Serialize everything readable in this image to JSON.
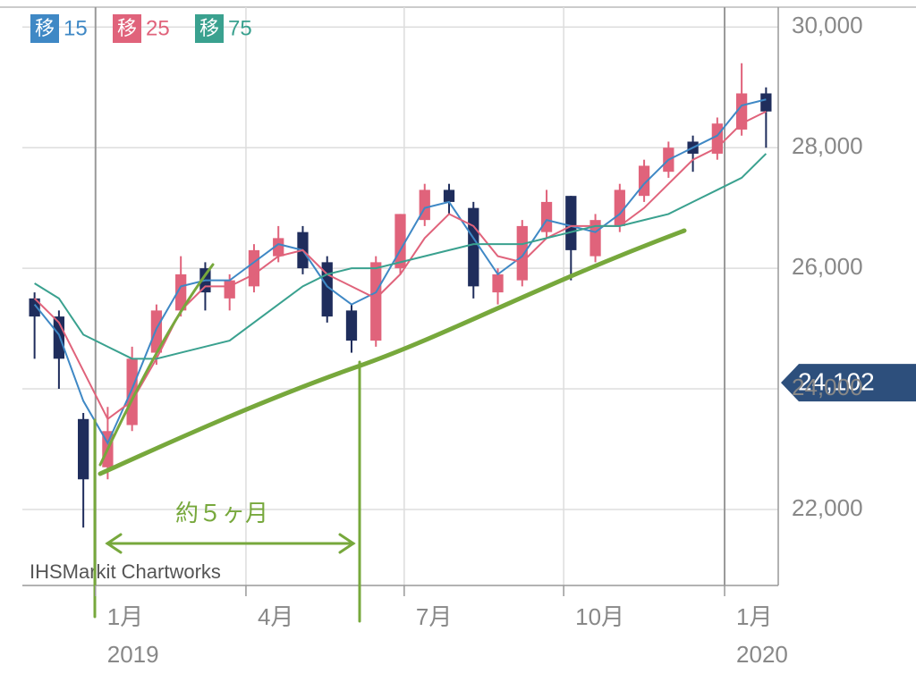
{
  "chart_data": {
    "type": "candlestick",
    "legend_prefix": "移",
    "source": "IHSMarkit Chartworks",
    "annotation": "約５ヶ月",
    "up_color": "#e0637b",
    "down_color": "#1f2d5c",
    "open": [
      25500,
      25200,
      23500,
      22700,
      23400,
      24600,
      25300,
      26000,
      25500,
      25700,
      26200,
      26600,
      26100,
      25300,
      24800,
      26000,
      26800,
      27300,
      27000,
      25600,
      25800,
      26600,
      27200,
      26200,
      26700,
      27200,
      27600,
      28100,
      27900,
      28300,
      28900
    ],
    "high": [
      25600,
      25300,
      23600,
      23700,
      24700,
      25400,
      26200,
      26100,
      25900,
      26400,
      26700,
      26700,
      26200,
      25400,
      26200,
      26900,
      27400,
      27400,
      27100,
      26000,
      26800,
      27300,
      27200,
      26900,
      27400,
      27800,
      28100,
      28200,
      28500,
      29400,
      29000
    ],
    "low": [
      24500,
      24000,
      21700,
      22500,
      23300,
      24400,
      25200,
      25300,
      25300,
      25600,
      26100,
      25900,
      25100,
      24600,
      24700,
      25900,
      26700,
      26900,
      25500,
      25400,
      25700,
      26500,
      25800,
      26100,
      26600,
      27100,
      27500,
      27600,
      27800,
      28200,
      28000
    ],
    "close": [
      25200,
      24500,
      22500,
      23300,
      24500,
      25300,
      25900,
      25600,
      25800,
      26300,
      26500,
      26000,
      25200,
      24800,
      26100,
      26900,
      27300,
      27100,
      25700,
      25900,
      26700,
      27100,
      26300,
      26800,
      27300,
      27700,
      28000,
      27900,
      28400,
      28900,
      28600
    ],
    "series": [
      {
        "name": "15",
        "color": "#3f88c5",
        "values": [
          25400,
          24900,
          23800,
          23100,
          24000,
          25000,
          25700,
          25800,
          25800,
          26100,
          26400,
          26300,
          25700,
          25400,
          25600,
          26300,
          27000,
          27100,
          26500,
          25900,
          26200,
          26800,
          26700,
          26600,
          26900,
          27400,
          27800,
          28000,
          28200,
          28700,
          28800
        ]
      },
      {
        "name": "25",
        "color": "#e0637b",
        "values": [
          25500,
          25100,
          24300,
          23500,
          23800,
          24500,
          25300,
          25700,
          25700,
          25900,
          26200,
          26300,
          25900,
          25700,
          25500,
          25900,
          26500,
          26900,
          26700,
          26200,
          26100,
          26500,
          26700,
          26700,
          26700,
          27000,
          27400,
          27800,
          28000,
          28400,
          28600
        ]
      },
      {
        "name": "75",
        "color": "#3aa18f",
        "values": [
          25750,
          25500,
          24900,
          24700,
          24500,
          24500,
          24600,
          24700,
          24800,
          25100,
          25400,
          25700,
          25900,
          26000,
          26000,
          26100,
          26200,
          26300,
          26400,
          26400,
          26400,
          26500,
          26600,
          26700,
          26700,
          26800,
          26900,
          27100,
          27300,
          27500,
          27900
        ]
      }
    ],
    "xlim": [
      0,
      31
    ],
    "xticks": [
      {
        "value": 3.0,
        "label": "1月"
      },
      {
        "value": 9.17,
        "label": "4月"
      },
      {
        "value": 15.66,
        "label": "7月"
      },
      {
        "value": 22.2,
        "label": "10月"
      },
      {
        "value": 28.8,
        "label": "1月"
      }
    ],
    "year_labels": [
      {
        "value": 3.0,
        "label": "2019"
      },
      {
        "value": 28.8,
        "label": "2020"
      }
    ],
    "ylim": [
      20740,
      30330
    ],
    "yticks": [
      {
        "value": 22000,
        "label": "22,000"
      },
      {
        "value": 24000,
        "label": "24,000"
      },
      {
        "value": 26000,
        "label": "26,000"
      },
      {
        "value": 28000,
        "label": "28,000"
      },
      {
        "value": 30000,
        "label": "30,000"
      }
    ],
    "last_price": {
      "value": 24102,
      "label": "24,102"
    },
    "grid": true
  }
}
